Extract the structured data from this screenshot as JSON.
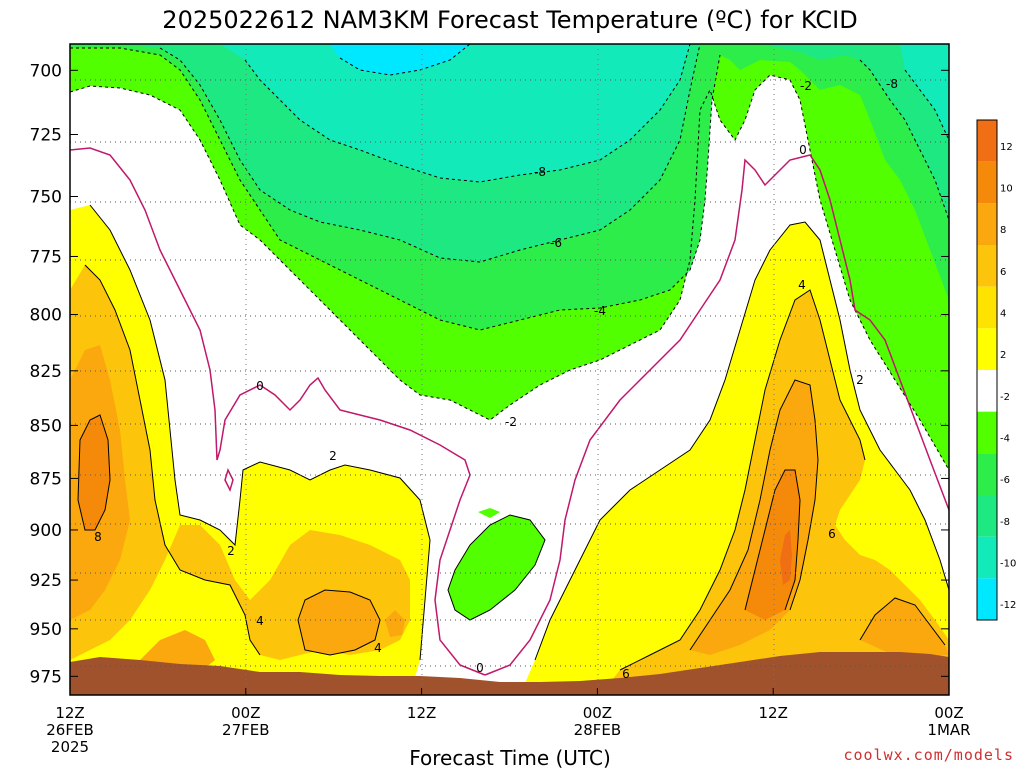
{
  "chart_data": {
    "type": "heatmap",
    "title": "2025022612 NAM3KM Forecast Temperature (ºC) for KCID",
    "xlabel": "Forecast Time (UTC)",
    "ylabel": "",
    "y_scale": "pressure (inverted, hPa)",
    "ylim": [
      985,
      690
    ],
    "y_ticks": [
      "700",
      "725",
      "750",
      "775",
      "800",
      "825",
      "850",
      "875",
      "900",
      "925",
      "950",
      "975"
    ],
    "x_ticks": [
      {
        "l1": "12Z",
        "l2": "26FEB",
        "l3": "2025"
      },
      {
        "l1": "00Z",
        "l2": "27FEB",
        "l3": ""
      },
      {
        "l1": "12Z",
        "l2": "",
        "l3": ""
      },
      {
        "l1": "00Z",
        "l2": "28FEB",
        "l3": ""
      },
      {
        "l1": "12Z",
        "l2": "",
        "l3": ""
      },
      {
        "l1": "00Z",
        "l2": "1MAR",
        "l3": ""
      }
    ],
    "colorbar": {
      "labels": [
        "12",
        "10",
        "8",
        "6",
        "4",
        "2",
        "-2",
        "-4",
        "-6",
        "-8",
        "-10",
        "-12"
      ],
      "colors": [
        "#f06e14",
        "#f58a0a",
        "#fba70e",
        "#fdc40c",
        "#ffe300",
        "#ffff00",
        "#ffffff",
        "#52ff00",
        "#2ded4a",
        "#1ee882",
        "#12eaba",
        "#00e8ff"
      ]
    },
    "contour_labels": [
      "-2",
      "-8",
      "0",
      "-8",
      "-6",
      "-4",
      "0",
      "-2",
      "2",
      "2",
      "4",
      "8",
      "2",
      "4",
      "4",
      "6",
      "6",
      "2",
      "0"
    ],
    "terrain_color": "#a0522d",
    "grid": true
  },
  "credit": "coolwx.com/models"
}
